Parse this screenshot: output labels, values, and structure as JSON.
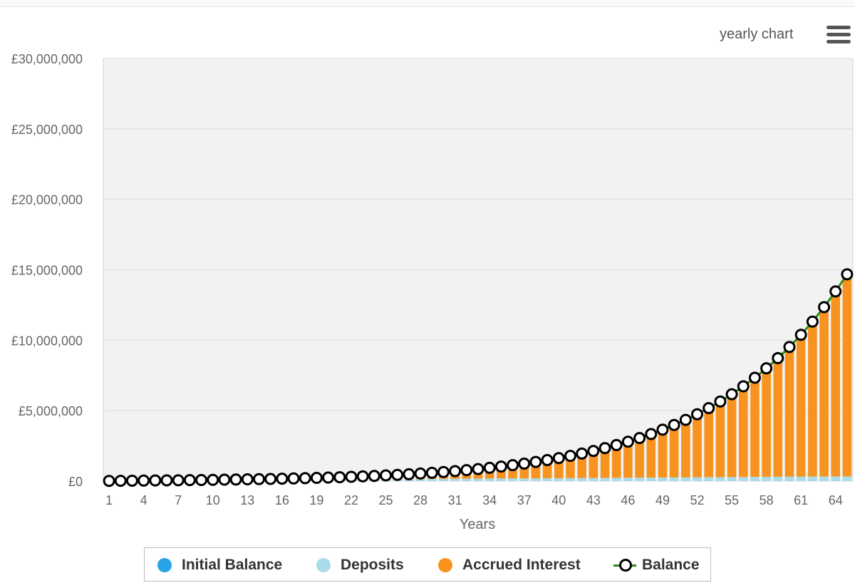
{
  "header": {
    "title": "yearly chart",
    "menu_icon": "hamburger-menu-icon"
  },
  "colors": {
    "initial_balance": "#29a3e8",
    "deposits": "#a9dbe8",
    "accrued_interest": "#f7931e",
    "balance_line": "#2a8a14",
    "balance_marker_border": "#000000",
    "plot_background": "#f2f2f2",
    "gridline": "#dcdcdc"
  },
  "legend": [
    {
      "label": "Initial Balance",
      "icon": "circle-swatch",
      "color": "#29a3e8"
    },
    {
      "label": "Deposits",
      "icon": "circle-swatch",
      "color": "#a9dbe8"
    },
    {
      "label": "Accrued Interest",
      "icon": "circle-swatch",
      "color": "#f7931e"
    },
    {
      "label": "Balance",
      "icon": "line-marker-swatch",
      "color": "#2a8a14"
    }
  ],
  "chart_data": {
    "type": "bar",
    "stacked": true,
    "title": "",
    "xlabel": "Years",
    "ylabel": "",
    "ylim": [
      0,
      30000000
    ],
    "y_ticks": [
      0,
      5000000,
      10000000,
      15000000,
      20000000,
      25000000,
      30000000
    ],
    "y_tick_labels": [
      "£0",
      "£5,000,000",
      "£10,000,000",
      "£15,000,000",
      "£20,000,000",
      "£25,000,000",
      "£30,000,000"
    ],
    "x": [
      1,
      2,
      3,
      4,
      5,
      6,
      7,
      8,
      9,
      10,
      11,
      12,
      13,
      14,
      15,
      16,
      17,
      18,
      19,
      20,
      21,
      22,
      23,
      24,
      25,
      26,
      27,
      28,
      29,
      30,
      31,
      32,
      33,
      34,
      35,
      36,
      37,
      38,
      39,
      40,
      41,
      42,
      43,
      44,
      45,
      46,
      47,
      48,
      49,
      50,
      51,
      52,
      53,
      54,
      55,
      56,
      57,
      58,
      59,
      60,
      61,
      62,
      63,
      64,
      65
    ],
    "x_tick_labels": [
      "1",
      "4",
      "7",
      "10",
      "13",
      "16",
      "19",
      "22",
      "25",
      "28",
      "31",
      "34",
      "37",
      "40",
      "43",
      "46",
      "49",
      "52",
      "55",
      "58",
      "61",
      "64"
    ],
    "grid": true,
    "legend_position": "bottom-center",
    "series": [
      {
        "name": "Initial Balance",
        "kind": "bar",
        "values": [
          10000,
          10000,
          10000,
          10000,
          10000,
          10000,
          10000,
          10000,
          10000,
          10000,
          10000,
          10000,
          10000,
          10000,
          10000,
          10000,
          10000,
          10000,
          10000,
          10000,
          10000,
          10000,
          10000,
          10000,
          10000,
          10000,
          10000,
          10000,
          10000,
          10000,
          10000,
          10000,
          10000,
          10000,
          10000,
          10000,
          10000,
          10000,
          10000,
          10000,
          10000,
          10000,
          10000,
          10000,
          10000,
          10000,
          10000,
          10000,
          10000,
          10000,
          10000,
          10000,
          10000,
          10000,
          10000,
          10000,
          10000,
          10000,
          10000,
          10000,
          10000,
          10000,
          10000,
          10000,
          10000
        ]
      },
      {
        "name": "Deposits",
        "kind": "bar",
        "values": [
          5000,
          10000,
          15000,
          20000,
          25000,
          30000,
          35000,
          40000,
          45000,
          50000,
          55000,
          60000,
          65000,
          70000,
          75000,
          80000,
          85000,
          90000,
          95000,
          100000,
          105000,
          110000,
          115000,
          120000,
          125000,
          130000,
          135000,
          140000,
          145000,
          150000,
          155000,
          160000,
          165000,
          170000,
          175000,
          180000,
          185000,
          190000,
          195000,
          200000,
          205000,
          210000,
          215000,
          220000,
          225000,
          230000,
          235000,
          240000,
          245000,
          250000,
          255000,
          260000,
          265000,
          270000,
          275000,
          280000,
          285000,
          290000,
          295000,
          300000,
          305000,
          310000,
          315000,
          320000,
          325000
        ]
      },
      {
        "name": "Accrued Interest",
        "kind": "bar",
        "values": [
          500,
          1500,
          3000,
          5000,
          7500,
          10500,
          14000,
          18000,
          22500,
          28000,
          34000,
          41000,
          49000,
          58000,
          68000,
          79000,
          92000,
          106000,
          121000,
          140000,
          160000,
          183000,
          208000,
          236000,
          268000,
          303000,
          342000,
          385000,
          433000,
          486000,
          545000,
          610000,
          681000,
          760000,
          846000,
          941000,
          1045000,
          1160000,
          1285000,
          1422000,
          1572000,
          1735000,
          1914000,
          2110000,
          2323000,
          2557000,
          2811000,
          3089000,
          3392000,
          3722000,
          4082000,
          4475000,
          4903000,
          5370000,
          5880000,
          6436000,
          7042000,
          7703000,
          8424000,
          9210000,
          10067000,
          11002000,
          12021000,
          13132000,
          14344000
        ]
      },
      {
        "name": "Balance",
        "kind": "line",
        "values": [
          15500,
          21500,
          28000,
          35000,
          42500,
          50500,
          59000,
          68000,
          77500,
          88000,
          99000,
          111000,
          124000,
          138000,
          153000,
          169000,
          187000,
          206000,
          226000,
          250000,
          275000,
          303000,
          333000,
          366000,
          403000,
          443000,
          487000,
          535000,
          588000,
          646000,
          710000,
          780000,
          856000,
          940000,
          1031000,
          1131000,
          1240000,
          1360000,
          1490000,
          1632000,
          1787000,
          1955000,
          2139000,
          2340000,
          2558000,
          2797000,
          3056000,
          3339000,
          3647000,
          3982000,
          4347000,
          4745000,
          5178000,
          5650000,
          6165000,
          6726000,
          7337000,
          8003000,
          8729000,
          9520000,
          10382000,
          11322000,
          12346000,
          13462000,
          14679000
        ]
      }
    ]
  }
}
